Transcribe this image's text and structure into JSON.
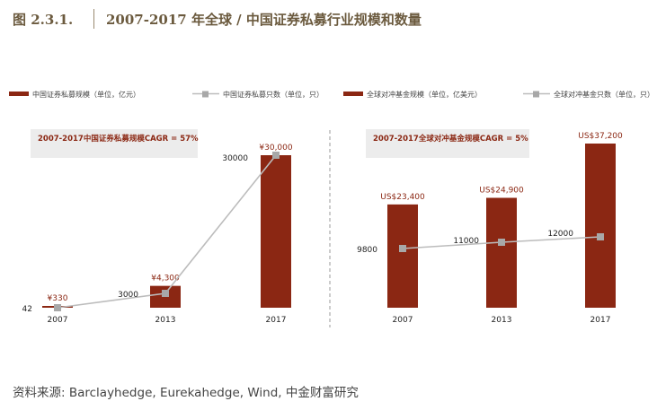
{
  "figure": {
    "label": "图 2.3.1.",
    "title": "2007-2017 年全球 / 中国证券私募行业规模和数量"
  },
  "colors": {
    "bar": "#8b2713",
    "line": "#bcbcbc",
    "marker": "#a8a8a8",
    "label_red": "#8b2713",
    "cagr_box": "#ececec",
    "header_text": "#6b5a3e"
  },
  "source": "资料来源: Barclayhedge, Eurekahedge, Wind, 中金财富研究",
  "chart_data": [
    {
      "type": "bar",
      "categories": [
        "2007",
        "2013",
        "2017"
      ],
      "series": [
        {
          "name": "中国证券私募规模（单位，亿元）",
          "kind": "bar",
          "values": [
            330,
            4300,
            30000
          ]
        },
        {
          "name": "中国证券私募只数（单位，只）",
          "kind": "line",
          "values": [
            42,
            3000,
            30000
          ]
        }
      ],
      "bar_labels": [
        "¥330",
        "¥4,300",
        "¥30,000"
      ],
      "line_labels": [
        "42",
        "3000",
        "30000"
      ],
      "annotation": "2007-2017中国证券私募规模CAGR = 57%",
      "ylim": [
        0,
        30000
      ],
      "grid": false,
      "legend_position": "top"
    },
    {
      "type": "bar",
      "categories": [
        "2007",
        "2013",
        "2017"
      ],
      "series": [
        {
          "name": "全球对冲基金规模（单位，亿美元）",
          "kind": "bar",
          "values": [
            23400,
            24900,
            37200
          ]
        },
        {
          "name": "全球对冲基金只数（单位，只）",
          "kind": "line",
          "values": [
            9800,
            11000,
            12000
          ]
        }
      ],
      "bar_labels": [
        "US$23,400",
        "US$24,900",
        "US$37,200"
      ],
      "line_labels": [
        "9800",
        "11000",
        "12000"
      ],
      "annotation": "2007-2017全球对冲基金规模CAGR = 5%",
      "grid": false,
      "legend_position": "top"
    }
  ]
}
